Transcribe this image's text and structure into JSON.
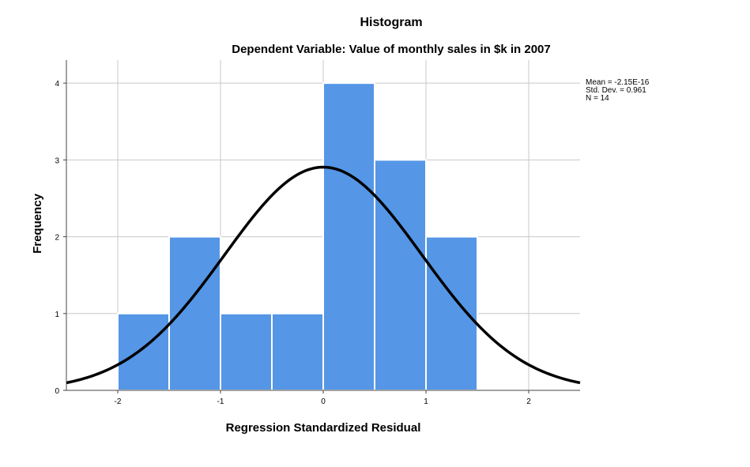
{
  "chart_data": {
    "type": "bar",
    "subtype": "histogram",
    "title": "Histogram",
    "subtitle": "Dependent Variable: Value of monthly sales in $k in 2007",
    "xlabel": "Regression Standardized Residual",
    "ylabel": "Frequency",
    "xlim": [
      -2.5,
      2.5
    ],
    "ylim": [
      0,
      4.3
    ],
    "x_ticks": [
      -2,
      -1,
      0,
      1,
      2
    ],
    "x_tick_labels": [
      "-2",
      "-1",
      "0",
      "1",
      "2"
    ],
    "y_ticks": [
      0,
      1,
      2,
      3,
      4
    ],
    "y_tick_labels": [
      "0",
      "1",
      "2",
      "3",
      "4"
    ],
    "grid": true,
    "bins": [
      {
        "x0": -2.0,
        "x1": -1.5,
        "count": 1
      },
      {
        "x0": -1.5,
        "x1": -1.0,
        "count": 2
      },
      {
        "x0": -1.0,
        "x1": -0.5,
        "count": 1
      },
      {
        "x0": -0.5,
        "x1": 0.0,
        "count": 1
      },
      {
        "x0": 0.0,
        "x1": 0.5,
        "count": 4
      },
      {
        "x0": 0.5,
        "x1": 1.0,
        "count": 3
      },
      {
        "x0": 1.0,
        "x1": 1.5,
        "count": 2
      }
    ],
    "normal_curve": {
      "mean": -2.15e-16,
      "sd": 0.961,
      "n": 14,
      "bin_width": 0.5
    },
    "bar_color": "#5596e6",
    "curve_color": "#000000",
    "stats": {
      "mean": "Mean = -2.15E-16",
      "sd": "Std. Dev. = 0.961",
      "n": "N = 14"
    },
    "stats_position": "top-right"
  }
}
